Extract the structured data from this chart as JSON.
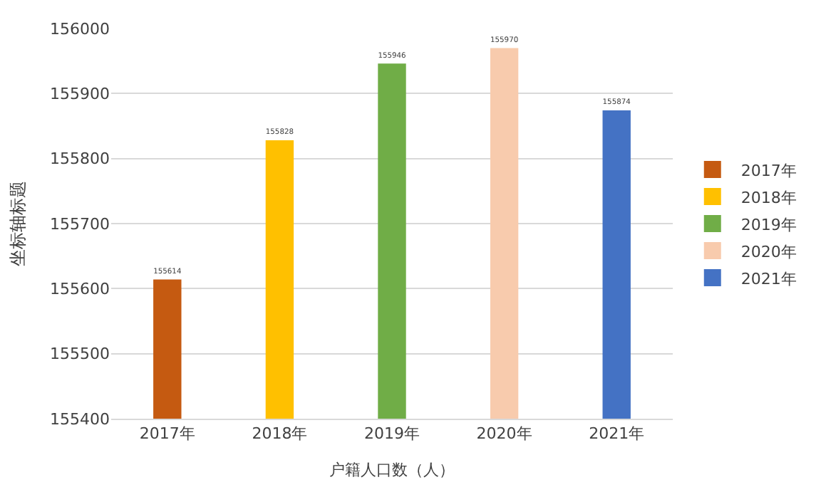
{
  "chart_data": {
    "type": "bar",
    "xlabel": "户籍人口数（人）",
    "ylabel": "坐标轴标题",
    "categories": [
      "2017年",
      "2018年",
      "2019年",
      "2020年",
      "2021年"
    ],
    "series": [
      {
        "name": "2017年",
        "color": "#c55a11",
        "values": [
          155614,
          null,
          null,
          null,
          null
        ]
      },
      {
        "name": "2018年",
        "color": "#ffc000",
        "values": [
          null,
          155828,
          null,
          null,
          null
        ]
      },
      {
        "name": "2019年",
        "color": "#70ad47",
        "values": [
          null,
          null,
          155946,
          null,
          null
        ]
      },
      {
        "name": "2020年",
        "color": "#f8cbad",
        "values": [
          null,
          null,
          null,
          155970,
          null
        ]
      },
      {
        "name": "2021年",
        "color": "#4472c4",
        "values": [
          null,
          null,
          null,
          null,
          155874
        ]
      }
    ],
    "ylim": [
      155400,
      156000
    ],
    "yticks": [
      155400,
      155500,
      155600,
      155700,
      155800,
      155900,
      156000
    ],
    "grid": "y",
    "legend": "right",
    "data_labels": true
  }
}
